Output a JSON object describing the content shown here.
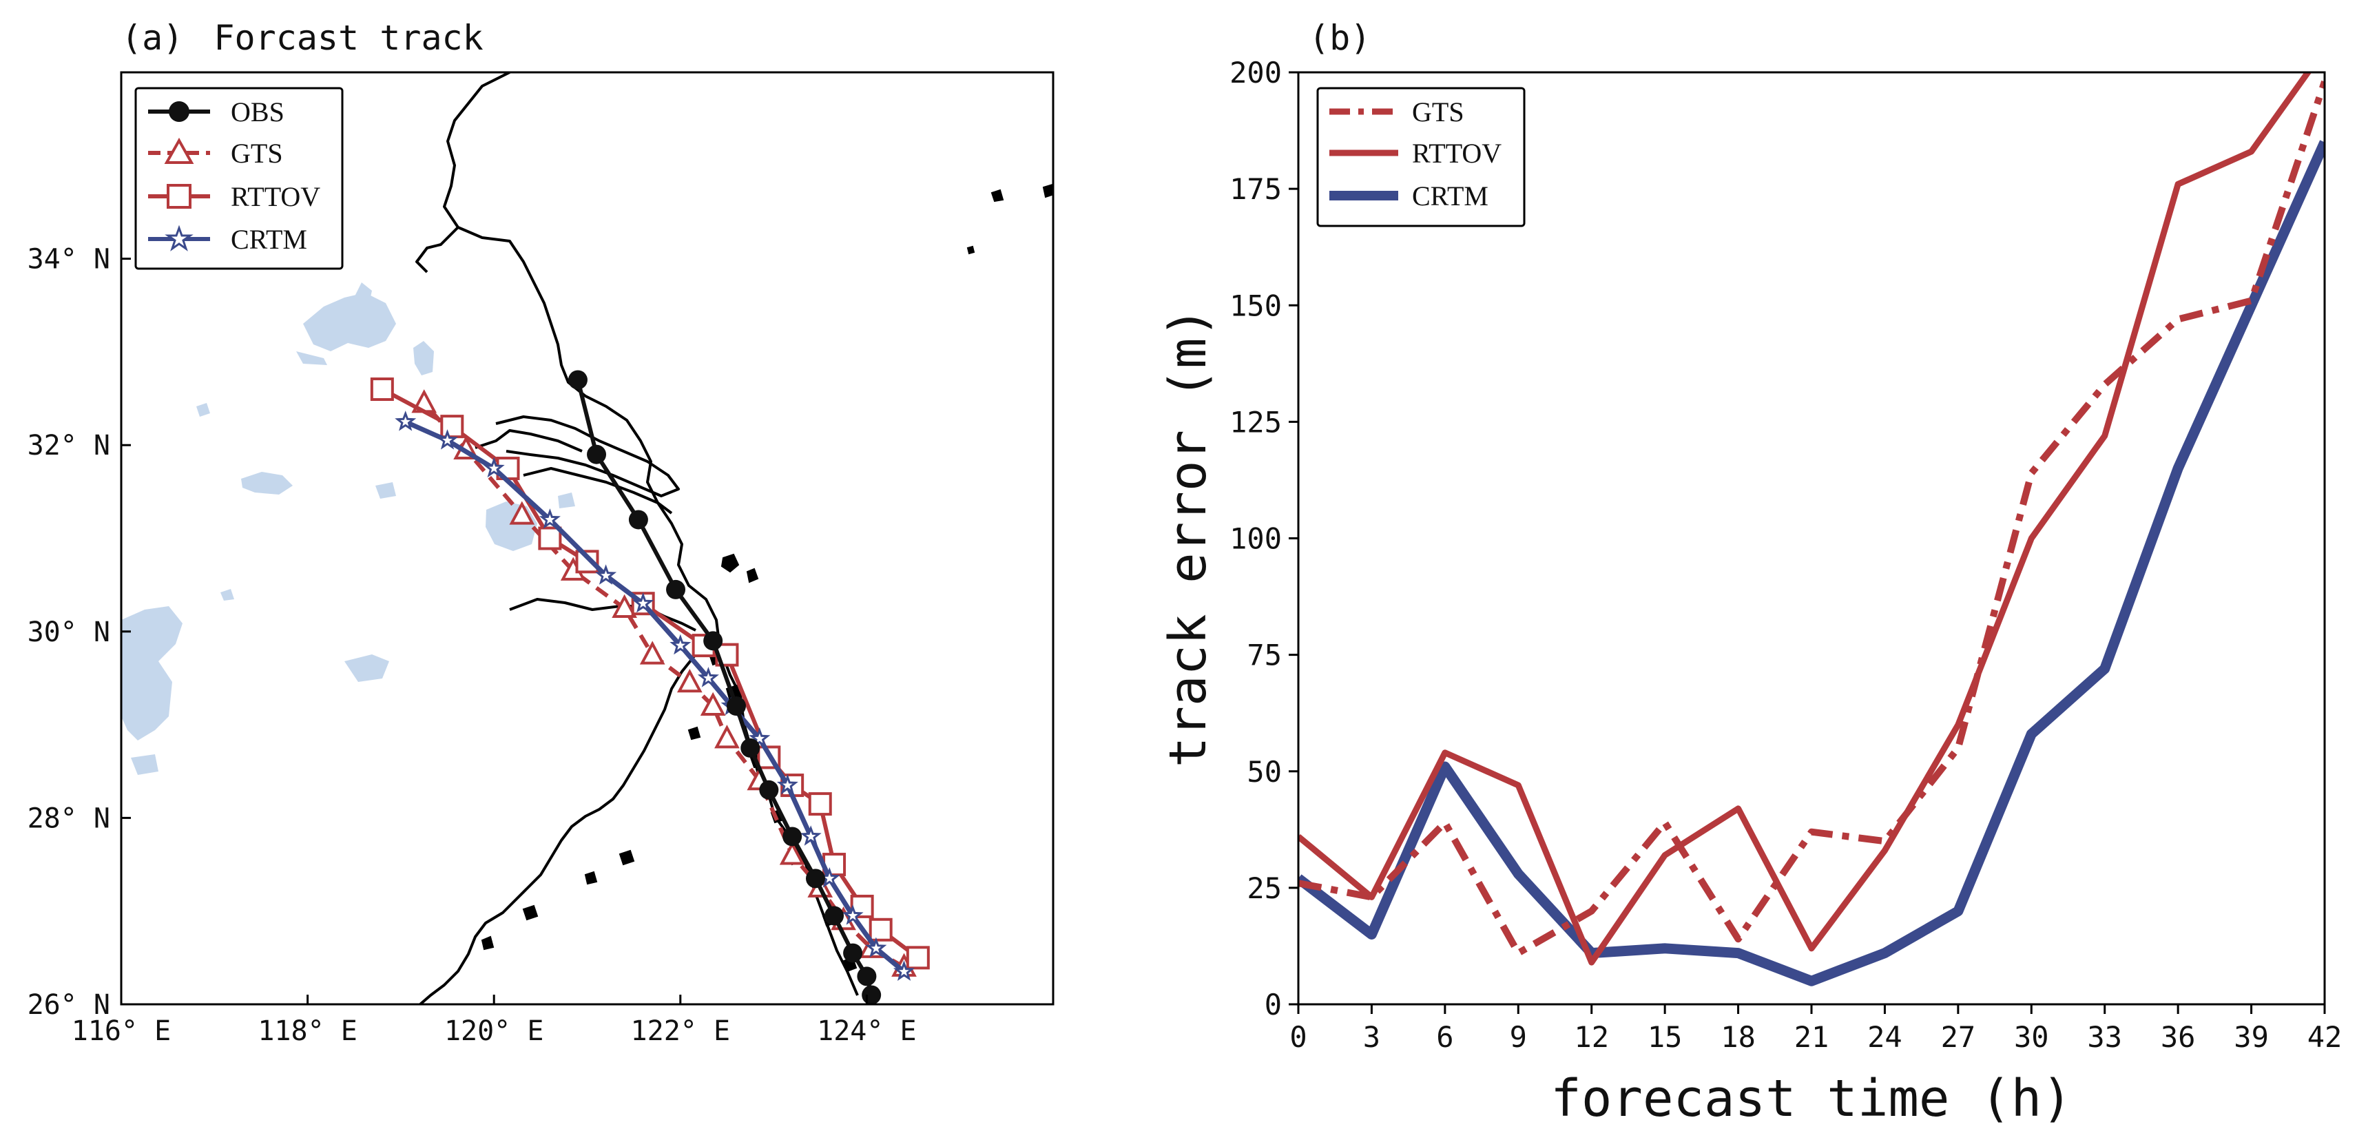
{
  "colors": {
    "obs": "#111111",
    "gts": "#b5393c",
    "rttov": "#b5393c",
    "crtm": "#3b4a8c",
    "water": "#c5d7ec",
    "coast": "#000000"
  },
  "chart_data": [
    {
      "type": "line",
      "subtype": "map-track",
      "panel_label": "(a)",
      "title": "Forcast track",
      "xlim": [
        116,
        126
      ],
      "ylim": [
        26,
        36
      ],
      "x_ticks": [
        116,
        118,
        120,
        122,
        124
      ],
      "x_tick_labels": [
        "116° E",
        "118° E",
        "120° E",
        "122° E",
        "124° E"
      ],
      "y_ticks": [
        26,
        28,
        30,
        32,
        34
      ],
      "y_tick_labels": [
        "26° N",
        "28° N",
        "30° N",
        "32° N",
        "34° N"
      ],
      "legend_position": "top-left",
      "series": [
        {
          "name": "OBS",
          "marker": "dot",
          "style": "solid",
          "lon": [
            124.05,
            124.0,
            123.85,
            123.65,
            123.45,
            123.2,
            122.95,
            122.75,
            122.6,
            122.35,
            121.95,
            121.55,
            121.1,
            120.9
          ],
          "lat": [
            26.1,
            26.3,
            26.55,
            26.95,
            27.35,
            27.8,
            28.3,
            28.75,
            29.2,
            29.9,
            30.45,
            31.2,
            31.9,
            32.7
          ]
        },
        {
          "name": "GTS",
          "marker": "triangle",
          "style": "dashed",
          "lon": [
            124.4,
            124.05,
            123.75,
            123.5,
            123.2,
            122.85,
            122.5,
            122.35,
            122.1,
            121.7,
            121.4,
            120.85,
            120.3,
            119.7,
            119.25
          ],
          "lat": [
            26.4,
            26.6,
            26.9,
            27.25,
            27.6,
            28.4,
            28.85,
            29.2,
            29.45,
            29.75,
            30.25,
            30.65,
            31.25,
            31.95,
            32.45
          ]
        },
        {
          "name": "RTTOV",
          "marker": "square",
          "style": "solid",
          "lon": [
            124.55,
            124.15,
            123.95,
            123.65,
            123.5,
            123.2,
            122.95,
            122.5,
            122.25,
            121.6,
            121.0,
            120.6,
            120.15,
            119.55,
            118.8
          ],
          "lat": [
            26.5,
            26.8,
            27.05,
            27.5,
            28.15,
            28.35,
            28.65,
            29.75,
            29.85,
            30.3,
            30.75,
            31.0,
            31.75,
            32.2,
            32.6
          ]
        },
        {
          "name": "CRTM",
          "marker": "star",
          "style": "solid",
          "lon": [
            124.4,
            124.1,
            123.85,
            123.6,
            123.4,
            123.15,
            122.85,
            122.55,
            122.3,
            122.0,
            121.6,
            121.2,
            120.6,
            120.0,
            119.5,
            119.05
          ],
          "lat": [
            26.35,
            26.6,
            26.95,
            27.35,
            27.8,
            28.35,
            28.85,
            29.2,
            29.5,
            29.85,
            30.3,
            30.6,
            31.2,
            31.75,
            32.05,
            32.25
          ]
        }
      ]
    },
    {
      "type": "line",
      "panel_label": "(b)",
      "title": "",
      "xlabel": "forecast time (h)",
      "ylabel": "track error (m)",
      "x": [
        0,
        3,
        6,
        9,
        12,
        15,
        18,
        21,
        24,
        27,
        30,
        33,
        36,
        39,
        42
      ],
      "x_tick_labels": [
        "0",
        "3",
        "6",
        "9",
        "12",
        "15",
        "18",
        "21",
        "24",
        "27",
        "30",
        "33",
        "36",
        "39",
        "42"
      ],
      "xlim": [
        0,
        42
      ],
      "ylim": [
        0,
        200
      ],
      "y_ticks": [
        0,
        25,
        50,
        75,
        100,
        125,
        150,
        175,
        200
      ],
      "y_tick_labels": [
        "0",
        "25",
        "50",
        "75",
        "100",
        "125",
        "150",
        "175",
        "200"
      ],
      "legend_position": "top-left",
      "series": [
        {
          "name": "GTS",
          "style": "dashdot",
          "values": [
            26,
            23,
            39,
            11,
            20,
            39,
            14,
            37,
            35,
            55,
            114,
            133,
            147,
            151,
            198
          ]
        },
        {
          "name": "RTTOV",
          "style": "solid",
          "values": [
            36,
            23,
            54,
            47,
            9,
            32,
            42,
            12,
            33,
            60,
            100,
            122,
            176,
            183,
            205
          ]
        },
        {
          "name": "CRTM",
          "style": "solid-thick",
          "values": [
            27,
            15,
            51,
            28,
            11,
            12,
            11,
            5,
            11,
            20,
            58,
            72,
            115,
            150,
            185
          ]
        }
      ]
    }
  ]
}
